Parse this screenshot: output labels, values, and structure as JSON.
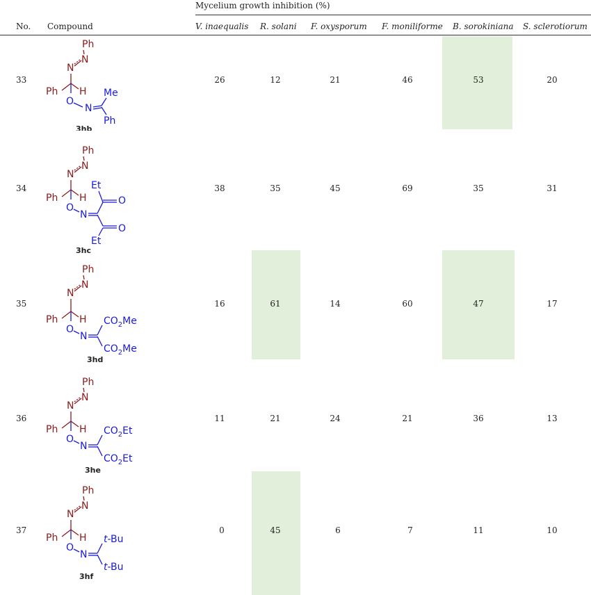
{
  "table": {
    "group_header": "Mycelium growth inhibition (%)",
    "col_no": "No.",
    "col_compound": "Compound",
    "fungi": [
      "V. inaequalis",
      "R. solani",
      "F. oxysporum",
      "F. moniliforme",
      "B. sorokiniana",
      "S. sclerotiorum"
    ],
    "rows": [
      {
        "no": "33",
        "compound": "3hb",
        "values": [
          "26",
          "12",
          "21",
          "46",
          "53",
          "20"
        ],
        "highlighted": [
          false,
          false,
          false,
          false,
          true,
          false
        ]
      },
      {
        "no": "34",
        "compound": "3hc",
        "values": [
          "38",
          "35",
          "45",
          "69",
          "35",
          "31"
        ],
        "highlighted": [
          false,
          false,
          false,
          false,
          false,
          false
        ]
      },
      {
        "no": "35",
        "compound": "3hd",
        "values": [
          "16",
          "61",
          "14",
          "60",
          "47",
          "17"
        ],
        "highlighted": [
          false,
          true,
          false,
          false,
          true,
          false
        ]
      },
      {
        "no": "36",
        "compound": "3he",
        "values": [
          "11",
          "21",
          "24",
          "21",
          "36",
          "13"
        ],
        "highlighted": [
          false,
          false,
          false,
          false,
          false,
          false
        ]
      },
      {
        "no": "37",
        "compound": "3hf",
        "values": [
          "0",
          "45",
          "6",
          "7",
          "11",
          "10"
        ],
        "highlighted": [
          false,
          true,
          false,
          false,
          false,
          false
        ]
      }
    ]
  },
  "molecules": {
    "ph": "Ph",
    "n": "N",
    "o": "O",
    "h": "H",
    "me": "Me",
    "et": "Et",
    "co2": "CO",
    "sub2": "2",
    "me_ester": "Me",
    "et_ester": "Et",
    "tbu": "t",
    "tbu_rest": "-Bu"
  },
  "colors": {
    "red": "#8b1a1a",
    "blue": "#1a1adb",
    "highlight": "#e2efda"
  }
}
